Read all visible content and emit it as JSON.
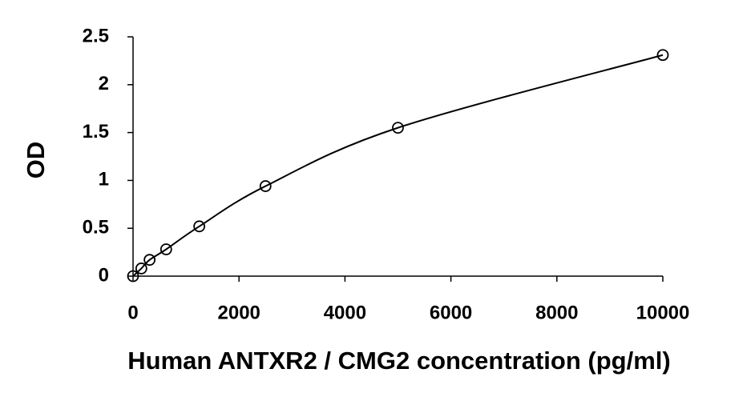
{
  "chart_data": {
    "type": "scatter",
    "x_label": "Human ANTXR2 / CMG2 concentration (pg/ml)",
    "y_label": "OD",
    "x": [
      0,
      156.25,
      312.5,
      625,
      1250,
      2500,
      5000,
      10000
    ],
    "values": [
      0,
      0.08,
      0.17,
      0.28,
      0.52,
      0.94,
      1.55,
      2.31
    ],
    "color": "#000000",
    "smooth": true,
    "marker": "circle",
    "xlim": [
      0,
      10000
    ],
    "xticks": [
      0,
      2000,
      4000,
      6000,
      8000,
      10000
    ],
    "ylim": [
      0,
      2.5
    ],
    "yticks": [
      0,
      0.5,
      1,
      1.5,
      2,
      2.5
    ],
    "grid": false
  }
}
